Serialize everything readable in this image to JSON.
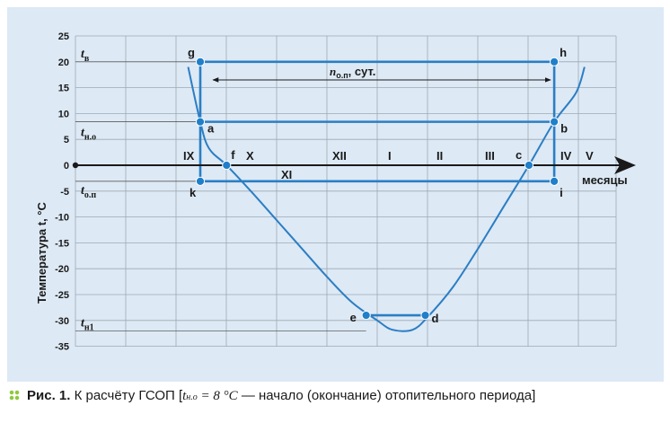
{
  "chart_data": {
    "type": "line",
    "ylabel": "Температура t, °C",
    "xlabel": "месяцы",
    "ylim": [
      -35,
      25
    ],
    "yticks": [
      25,
      20,
      15,
      10,
      5,
      0,
      -5,
      -10,
      -15,
      -20,
      -25,
      -30,
      -35
    ],
    "grid": true,
    "months": [
      "IX",
      "X",
      "XI",
      "XII",
      "I",
      "II",
      "III",
      "IV",
      "V"
    ],
    "curve": {
      "name": "t",
      "x": [
        -0.24,
        0.0,
        0.17,
        0.52,
        1.0,
        1.5,
        2.0,
        2.5,
        3.0,
        3.5,
        3.8,
        4.2,
        4.5,
        5.0,
        5.5,
        6.0,
        6.5,
        7.0,
        7.43,
        7.6
      ],
      "y": [
        19.0,
        8.4,
        3.3,
        0.0,
        -5.0,
        -10.5,
        -16.0,
        -21.5,
        -26.5,
        -30.0,
        -31.8,
        -31.8,
        -29.3,
        -23.5,
        -16.0,
        -8.0,
        0.0,
        8.4,
        14.0,
        19.0
      ]
    },
    "points": [
      {
        "label": "g",
        "x": 0.0,
        "y": 20.0
      },
      {
        "label": "h",
        "x": 7.0,
        "y": 20.0
      },
      {
        "label": "a",
        "x": 0.0,
        "y": 8.4
      },
      {
        "label": "b",
        "x": 7.0,
        "y": 8.4
      },
      {
        "label": "f",
        "x": 0.52,
        "y": 0.0
      },
      {
        "label": "c",
        "x": 6.5,
        "y": 0.0
      },
      {
        "label": "k",
        "x": 0.0,
        "y": -3.1
      },
      {
        "label": "i",
        "x": 7.0,
        "y": -3.1
      },
      {
        "label": "e",
        "x": 3.28,
        "y": -29.0
      },
      {
        "label": "d",
        "x": 4.45,
        "y": -29.0
      }
    ],
    "levels": {
      "t_v": {
        "main": "t",
        "sub": "в",
        "value": 20
      },
      "t_no": {
        "main": "t",
        "sub": "н.о",
        "value": 8.4
      },
      "t_op": {
        "main": "t",
        "sub": "о.п",
        "value": -3.1
      },
      "t_n1": {
        "main": "t",
        "sub": "н1",
        "value": -32
      }
    },
    "period_label": {
      "main": "n",
      "sub": "о.п",
      "suffix": ", сут."
    }
  },
  "caption": {
    "prefix": "Рис. 1.",
    "text": "К расчёту ГСОП [",
    "t_main": "t",
    "t_sub": "н.о",
    "formula_rest": " = 8 °С",
    "suffix": " — начало (окончание) отопительного периода]"
  },
  "colors": {
    "curve": "#2b7ec4",
    "panel": "#dde9f5",
    "grid": "#9da9b3",
    "point": "#1f7fca",
    "axis": "#1a1a1a"
  }
}
